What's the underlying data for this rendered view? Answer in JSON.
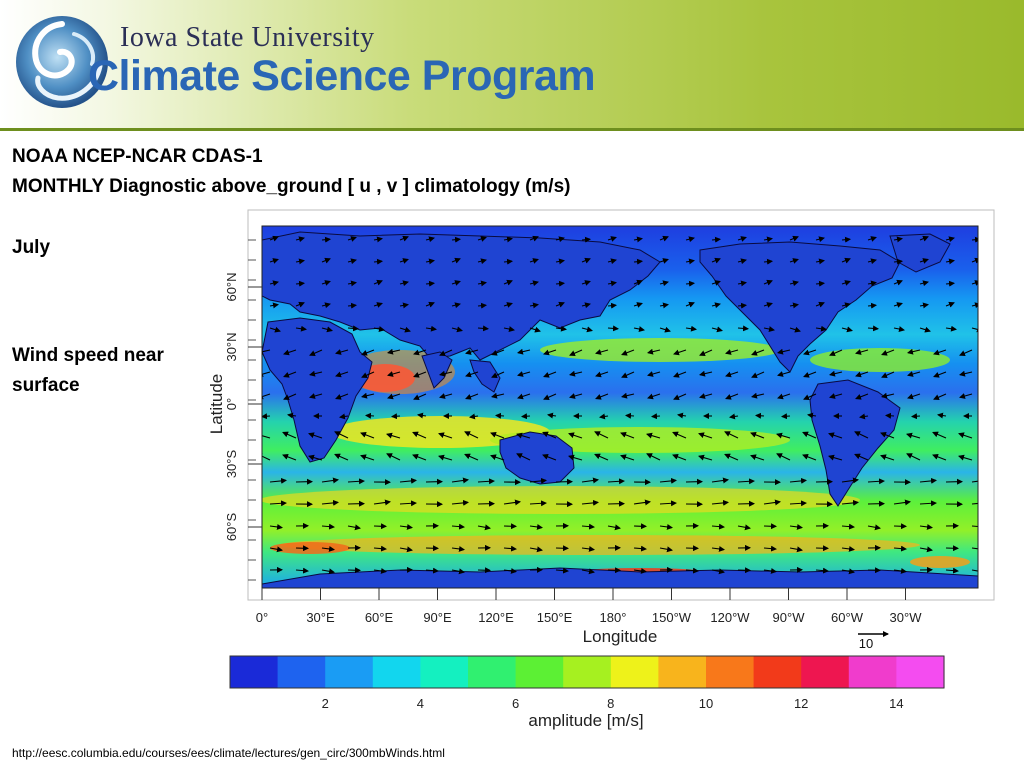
{
  "header": {
    "university": "Iowa State University",
    "program": "Climate Science Program",
    "logo_icon": "cyclone-globe-logo",
    "colors": {
      "band_green": "#a8c43d",
      "program_blue": "#2a66b5",
      "university_navy": "#2b2f56"
    }
  },
  "slide": {
    "title_line1": "NOAA NCEP-NCAR CDAS-1",
    "title_line2": "MONTHLY Diagnostic above_ground [ u , v ] climatology (m/s)",
    "month": "July",
    "description": "Wind speed near surface",
    "source_url": "http://eesc.columbia.edu/courses/ees/climate/lectures/gen_circ/300mbWinds.html"
  },
  "map": {
    "x_axis_label": "Longitude",
    "y_axis_label": "Latitude",
    "longitude_ticks": [
      "0°",
      "30°E",
      "60°E",
      "90°E",
      "120°E",
      "150°E",
      "180°",
      "150°W",
      "120°W",
      "90°W",
      "60°W",
      "30°W"
    ],
    "latitude_ticks": [
      "60°N",
      "30°N",
      "0°",
      "30°S",
      "60°S"
    ],
    "reference_vector_label": "10",
    "overlay": "wind vectors over shaded wind speed with continent outlines"
  },
  "colorbar": {
    "label": "amplitude [m/s]",
    "ticks": [
      "2",
      "4",
      "6",
      "8",
      "10",
      "12",
      "14"
    ],
    "range": [
      0,
      15
    ],
    "colors": [
      "#1a2ad8",
      "#1e63ef",
      "#1a9cf4",
      "#12d6ee",
      "#14f0c0",
      "#30f070",
      "#5cf034",
      "#a6f020",
      "#eef21a",
      "#f8b41c",
      "#f8781a",
      "#f23a1a",
      "#ee1650",
      "#f03ccc",
      "#f44cf0"
    ]
  }
}
